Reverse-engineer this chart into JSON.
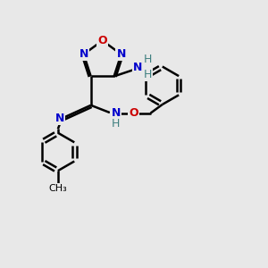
{
  "bg_color": "#e8e8e8",
  "atom_colors": {
    "C": "#000000",
    "N": "#0000cc",
    "O": "#cc0000",
    "H": "#408080"
  },
  "bond_color": "#000000",
  "bond_width": 1.8,
  "figsize": [
    3.0,
    3.0
  ],
  "dpi": 100
}
